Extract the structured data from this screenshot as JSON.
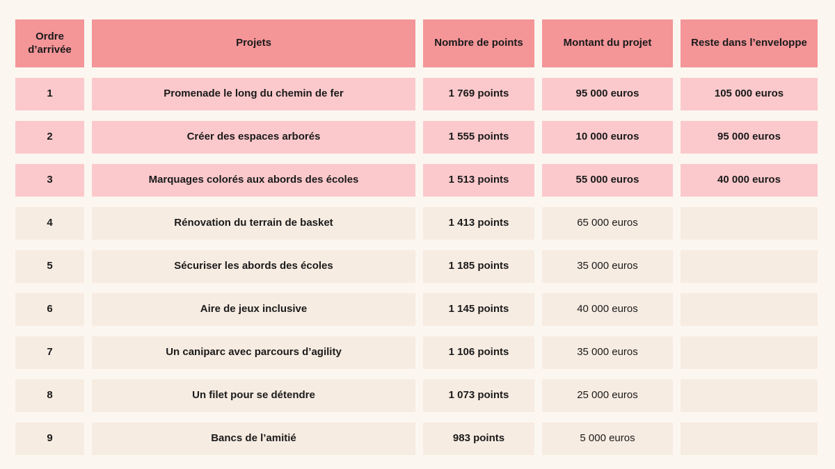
{
  "colors": {
    "page_bg": "#FBF7F0",
    "header_bg": "#F49598",
    "highlight_row_bg": "#FBC9CC",
    "normal_row_bg": "#F7ECE2",
    "text": "#1A1A1A"
  },
  "table": {
    "headers": {
      "ordre": "Ordre d’arrivée",
      "projet": "Projets",
      "points": "Nombre de points",
      "montant": "Montant du projet",
      "reste": "Reste dans l’enveloppe"
    },
    "rows": [
      {
        "ordre": "1",
        "projet": "Promenade le long du chemin de fer",
        "points": "1 769 points",
        "montant": "95 000 euros",
        "reste": "105 000 euros",
        "highlighted": true
      },
      {
        "ordre": "2",
        "projet": "Créer des espaces arborés",
        "points": "1 555 points",
        "montant": "10 000 euros",
        "reste": "95 000 euros",
        "highlighted": true
      },
      {
        "ordre": "3",
        "projet": "Marquages colorés aux abords des écoles",
        "points": "1 513 points",
        "montant": "55 000 euros",
        "reste": "40 000 euros",
        "highlighted": true
      },
      {
        "ordre": "4",
        "projet": "Rénovation du terrain de basket",
        "points": "1 413 points",
        "montant": "65 000 euros",
        "reste": "",
        "highlighted": false
      },
      {
        "ordre": "5",
        "projet": "Sécuriser les abords des écoles",
        "points": "1 185 points",
        "montant": "35 000 euros",
        "reste": "",
        "highlighted": false
      },
      {
        "ordre": "6",
        "projet": "Aire de jeux inclusive",
        "points": "1 145 points",
        "montant": "40 000 euros",
        "reste": "",
        "highlighted": false
      },
      {
        "ordre": "7",
        "projet": "Un caniparc avec parcours d’agility",
        "points": "1 106 points",
        "montant": "35 000 euros",
        "reste": "",
        "highlighted": false
      },
      {
        "ordre": "8",
        "projet": "Un filet pour se détendre",
        "points": "1 073 points",
        "montant": "25 000 euros",
        "reste": "",
        "highlighted": false
      },
      {
        "ordre": "9",
        "projet": "Bancs de l’amitié",
        "points": "983 points",
        "montant": "5 000 euros",
        "reste": "",
        "highlighted": false
      }
    ]
  }
}
